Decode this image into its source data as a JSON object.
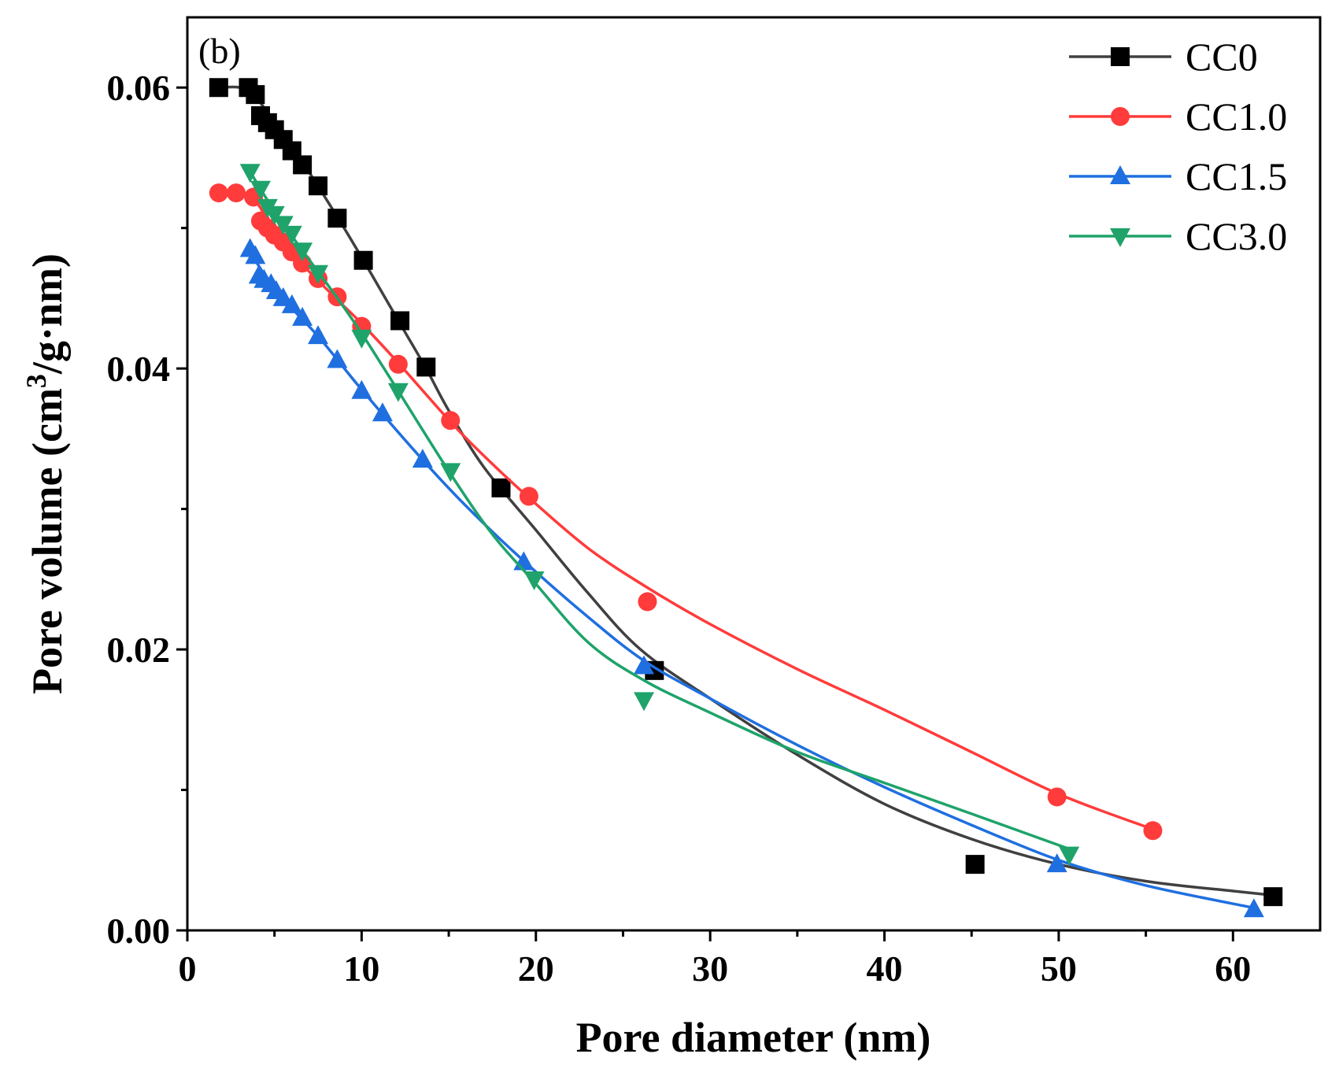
{
  "chart_data": {
    "type": "scatter",
    "panel_label": "(b)",
    "xlabel": "Pore diameter (nm)",
    "ylabel": {
      "prefix": "Pore volume (cm",
      "superscript": "3",
      "suffix": "/g·nm)"
    },
    "xlim": [
      0,
      65
    ],
    "ylim": [
      0,
      0.065
    ],
    "x_ticks": [
      0,
      10,
      20,
      30,
      40,
      50,
      60
    ],
    "x_tick_labels": [
      "0",
      "10",
      "20",
      "30",
      "40",
      "50",
      "60"
    ],
    "y_ticks": [
      0.0,
      0.02,
      0.04,
      0.06
    ],
    "y_tick_labels": [
      "0.00",
      "0.02",
      "0.04",
      "0.06"
    ],
    "y_minor_ticks": [
      0.01,
      0.03,
      0.05
    ],
    "x_minor_ticks": [
      5,
      15,
      25,
      35,
      45,
      55
    ],
    "grid": false,
    "legend_position": "top-right",
    "series": [
      {
        "name": "CC0",
        "color": "#000000",
        "line_color": "#404040",
        "marker": "square",
        "points": [
          [
            1.8,
            0.06
          ],
          [
            3.5,
            0.06
          ],
          [
            3.9,
            0.0595
          ],
          [
            4.2,
            0.058
          ],
          [
            4.6,
            0.0575
          ],
          [
            5.0,
            0.057
          ],
          [
            5.5,
            0.0563
          ],
          [
            6.0,
            0.0555
          ],
          [
            6.6,
            0.0545
          ],
          [
            7.5,
            0.053
          ],
          [
            8.6,
            0.0507
          ],
          [
            10.1,
            0.0477
          ],
          [
            12.2,
            0.0434
          ],
          [
            13.7,
            0.0401
          ],
          [
            18.0,
            0.0315
          ],
          [
            26.8,
            0.0185
          ],
          [
            45.2,
            0.0047
          ],
          [
            62.3,
            0.0024
          ]
        ],
        "fit": [
          [
            1.8,
            0.06
          ],
          [
            3.5,
            0.0598
          ],
          [
            5.0,
            0.0575
          ],
          [
            6.6,
            0.0547
          ],
          [
            8.6,
            0.0508
          ],
          [
            10.1,
            0.0477
          ],
          [
            12.2,
            0.0432
          ],
          [
            13.7,
            0.04
          ],
          [
            15.0,
            0.037
          ],
          [
            17.0,
            0.033
          ],
          [
            20.0,
            0.0285
          ],
          [
            23.0,
            0.024
          ],
          [
            26.0,
            0.02
          ],
          [
            30.0,
            0.0165
          ],
          [
            35.0,
            0.0125
          ],
          [
            40.0,
            0.009
          ],
          [
            45.0,
            0.0065
          ],
          [
            50.0,
            0.0047
          ],
          [
            55.0,
            0.0035
          ],
          [
            60.0,
            0.0028
          ],
          [
            62.3,
            0.0025
          ]
        ]
      },
      {
        "name": "CC1.0",
        "color": "#ff3b3b",
        "line_color": "#ff3b3b",
        "marker": "circle",
        "points": [
          [
            1.8,
            0.0525
          ],
          [
            2.8,
            0.0525
          ],
          [
            3.8,
            0.0522
          ],
          [
            4.2,
            0.0505
          ],
          [
            4.6,
            0.05
          ],
          [
            5.0,
            0.0495
          ],
          [
            5.5,
            0.049
          ],
          [
            6.0,
            0.0483
          ],
          [
            6.6,
            0.0475
          ],
          [
            7.5,
            0.0464
          ],
          [
            8.6,
            0.0451
          ],
          [
            10.0,
            0.043
          ],
          [
            12.1,
            0.0403
          ],
          [
            15.1,
            0.0363
          ],
          [
            19.6,
            0.0309
          ],
          [
            26.4,
            0.0234
          ],
          [
            49.9,
            0.0095
          ],
          [
            55.4,
            0.0071
          ]
        ],
        "fit": [
          [
            1.8,
            0.0525
          ],
          [
            3.8,
            0.052
          ],
          [
            5.0,
            0.0496
          ],
          [
            6.6,
            0.0474
          ],
          [
            8.6,
            0.0449
          ],
          [
            10.0,
            0.0432
          ],
          [
            12.1,
            0.0404
          ],
          [
            15.1,
            0.0362
          ],
          [
            17.0,
            0.0338
          ],
          [
            19.6,
            0.0308
          ],
          [
            23.0,
            0.0272
          ],
          [
            26.4,
            0.0244
          ],
          [
            30.0,
            0.0218
          ],
          [
            35.0,
            0.0186
          ],
          [
            40.0,
            0.0157
          ],
          [
            45.0,
            0.0127
          ],
          [
            50.0,
            0.0097
          ],
          [
            55.4,
            0.0072
          ]
        ]
      },
      {
        "name": "CC1.5",
        "color": "#1f6fe0",
        "line_color": "#1f6fe0",
        "marker": "triangle-up",
        "points": [
          [
            3.6,
            0.0485
          ],
          [
            3.9,
            0.048
          ],
          [
            4.1,
            0.0466
          ],
          [
            4.4,
            0.0463
          ],
          [
            4.8,
            0.046
          ],
          [
            5.1,
            0.0455
          ],
          [
            5.5,
            0.045
          ],
          [
            6.0,
            0.0445
          ],
          [
            6.6,
            0.0436
          ],
          [
            7.5,
            0.0423
          ],
          [
            8.6,
            0.0406
          ],
          [
            10.0,
            0.0384
          ],
          [
            11.2,
            0.0368
          ],
          [
            13.5,
            0.0335
          ],
          [
            19.3,
            0.0262
          ],
          [
            26.2,
            0.0188
          ],
          [
            49.9,
            0.0047
          ],
          [
            61.2,
            0.0015
          ]
        ],
        "fit": [
          [
            3.6,
            0.0483
          ],
          [
            5.1,
            0.0455
          ],
          [
            7.5,
            0.0423
          ],
          [
            10.0,
            0.0385
          ],
          [
            13.5,
            0.0335
          ],
          [
            16.0,
            0.0302
          ],
          [
            19.3,
            0.0263
          ],
          [
            23.0,
            0.0223
          ],
          [
            26.2,
            0.0192
          ],
          [
            30.0,
            0.0165
          ],
          [
            35.0,
            0.0132
          ],
          [
            40.0,
            0.0102
          ],
          [
            45.0,
            0.0075
          ],
          [
            50.0,
            0.005
          ],
          [
            55.0,
            0.0032
          ],
          [
            61.2,
            0.0016
          ]
        ]
      },
      {
        "name": "CC3.0",
        "color": "#1fa36a",
        "line_color": "#1fa36a",
        "marker": "triangle-down",
        "points": [
          [
            3.6,
            0.054
          ],
          [
            4.2,
            0.0528
          ],
          [
            4.6,
            0.0515
          ],
          [
            5.0,
            0.051
          ],
          [
            5.5,
            0.0503
          ],
          [
            6.0,
            0.0496
          ],
          [
            6.6,
            0.0484
          ],
          [
            7.5,
            0.0468
          ],
          [
            10.0,
            0.0422
          ],
          [
            12.1,
            0.0384
          ],
          [
            15.1,
            0.0327
          ],
          [
            19.9,
            0.025
          ],
          [
            26.2,
            0.0164
          ],
          [
            50.6,
            0.0054
          ]
        ],
        "fit": [
          [
            3.6,
            0.054
          ],
          [
            5.0,
            0.0512
          ],
          [
            6.6,
            0.0484
          ],
          [
            8.5,
            0.0452
          ],
          [
            10.0,
            0.0425
          ],
          [
            12.1,
            0.0384
          ],
          [
            15.1,
            0.0325
          ],
          [
            17.5,
            0.0282
          ],
          [
            19.9,
            0.0248
          ],
          [
            23.0,
            0.0205
          ],
          [
            26.2,
            0.0178
          ],
          [
            30.0,
            0.0155
          ],
          [
            35.0,
            0.0127
          ],
          [
            40.0,
            0.0105
          ],
          [
            45.0,
            0.0083
          ],
          [
            50.6,
            0.0058
          ]
        ]
      }
    ]
  }
}
